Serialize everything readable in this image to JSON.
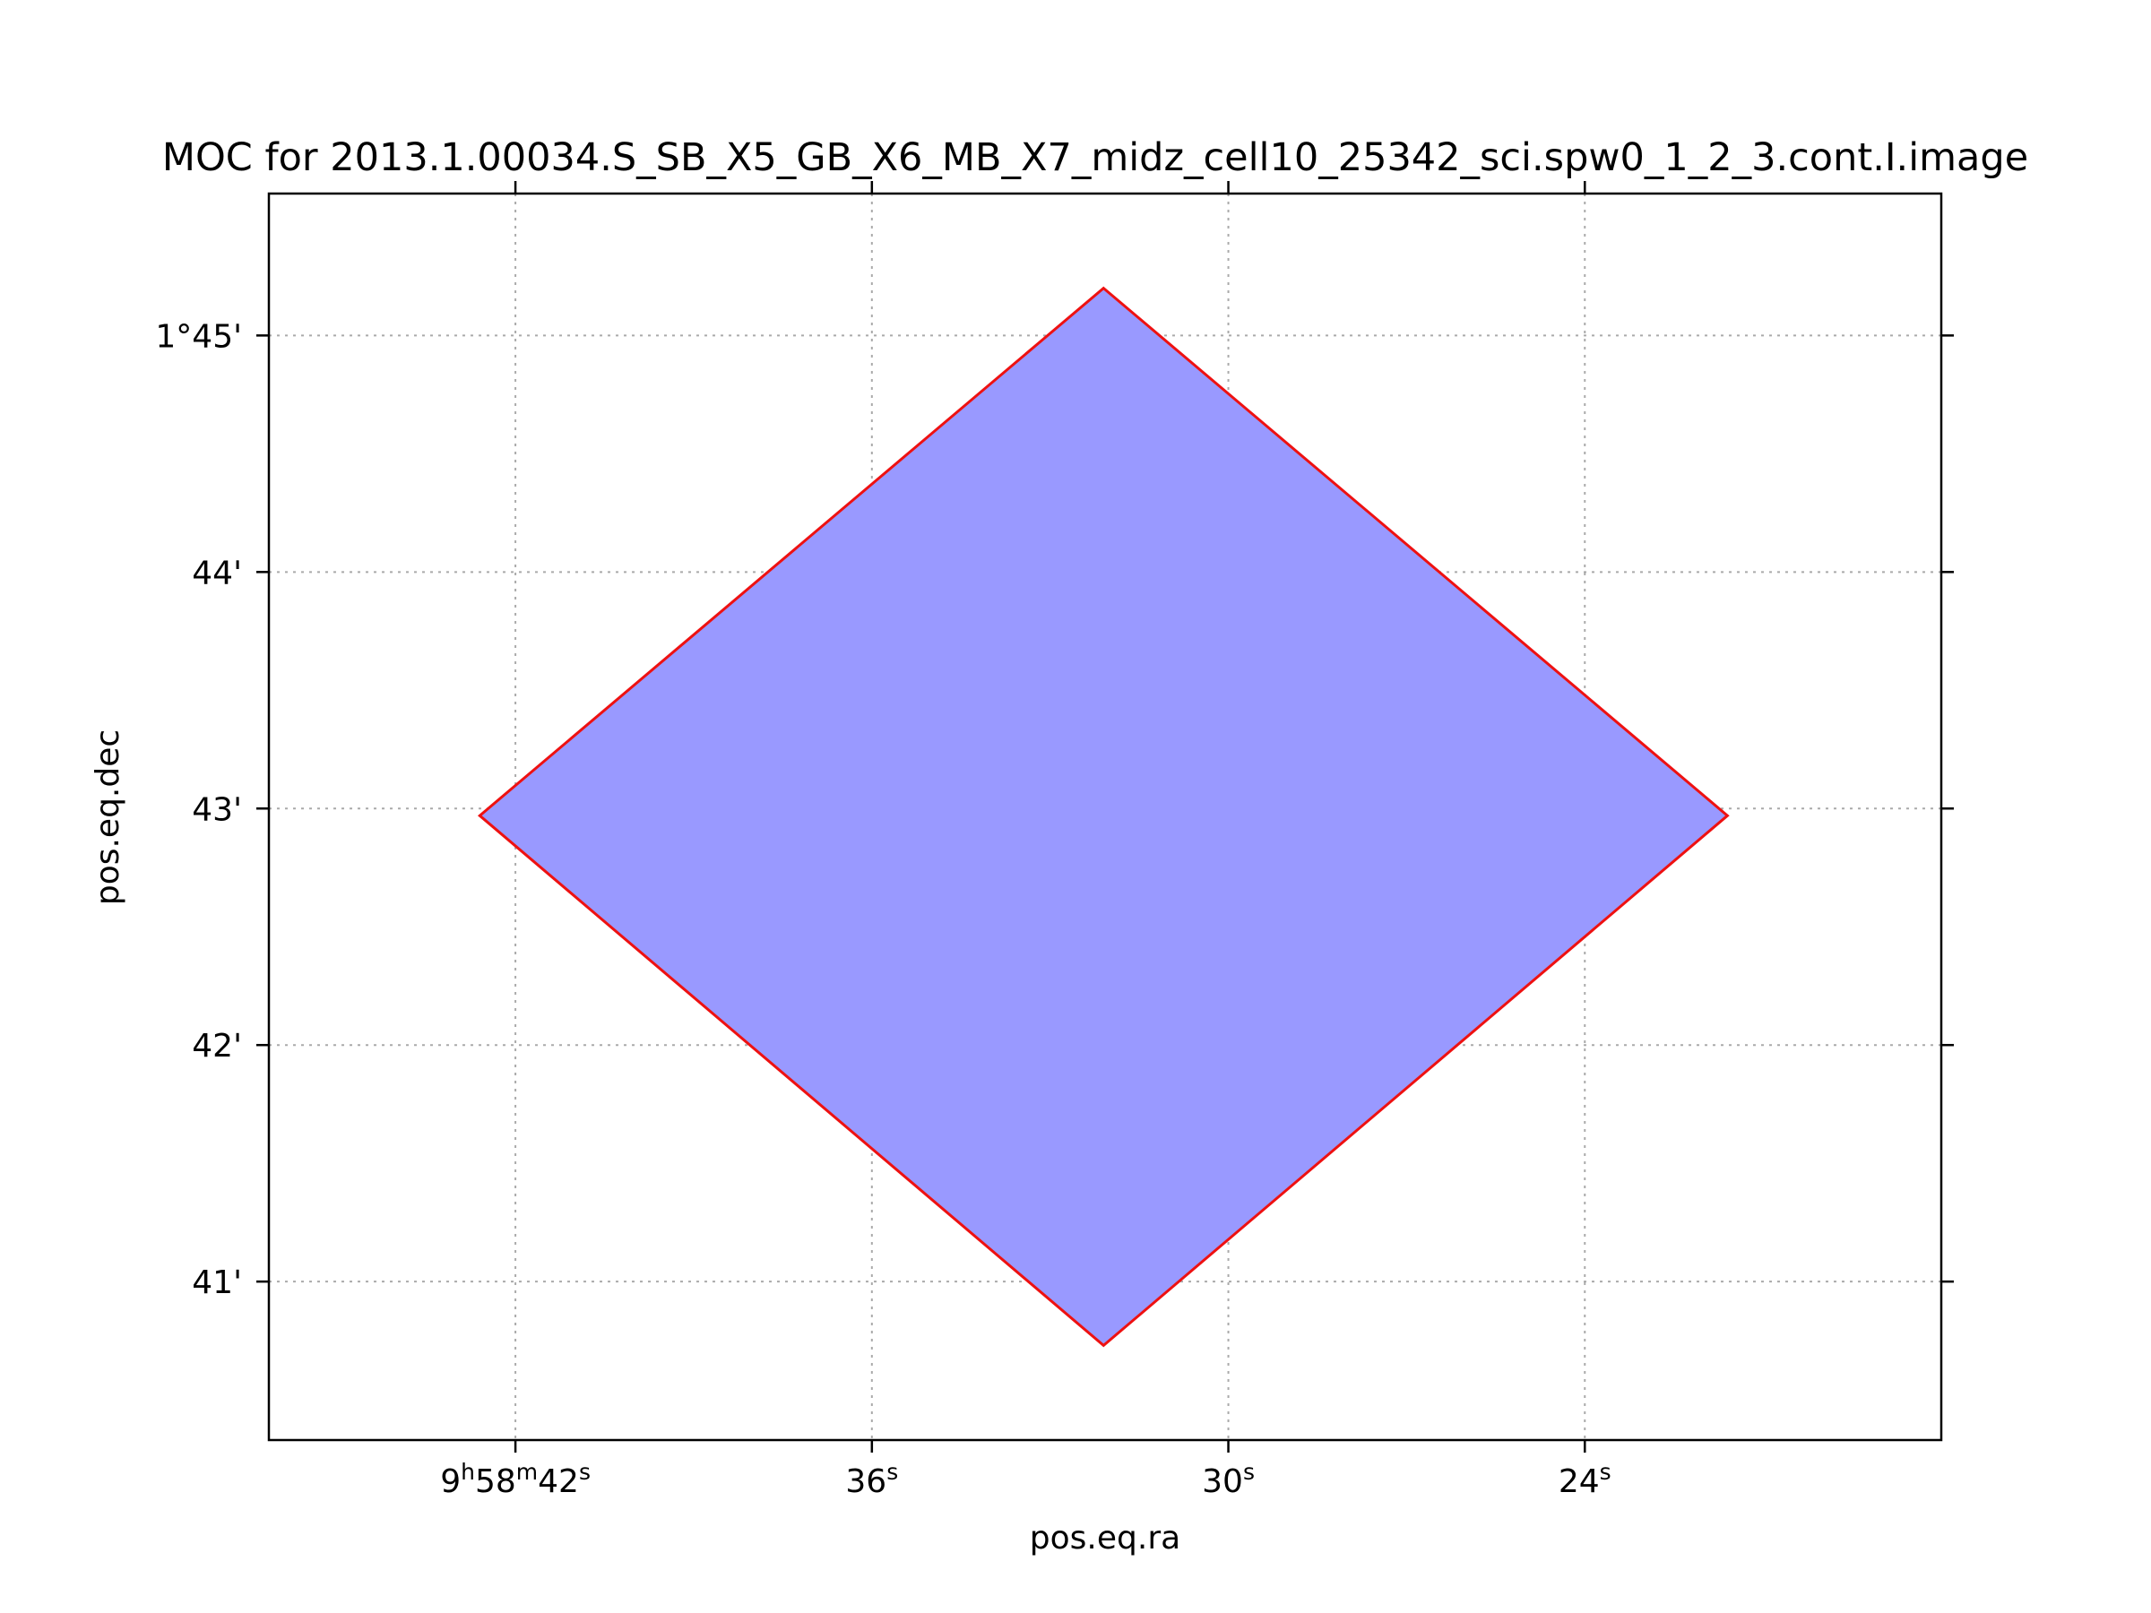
{
  "chart_data": {
    "type": "area",
    "title": "MOC for 2013.1.00034.S_SB_X5_GB_X6_MB_X7_midz_cell10_25342_sci.spw0_1_2_3.cont.I.image",
    "xlabel": "pos.eq.ra",
    "ylabel": "pos.eq.dec",
    "x_unit": "seconds of RA past 9h58m",
    "y_unit": "arcminutes of Dec past 1°",
    "xlim": [
      46.15,
      18.0
    ],
    "ylim": [
      40.33,
      45.6
    ],
    "grid": true,
    "x_ticks": [
      {
        "value": 42,
        "parts": [
          {
            "t": "9"
          },
          {
            "t": "h",
            "sup": true
          },
          {
            "t": "58"
          },
          {
            "t": "m",
            "sup": true
          },
          {
            "t": "42"
          },
          {
            "t": "s",
            "sup": true
          }
        ]
      },
      {
        "value": 36,
        "parts": [
          {
            "t": "36"
          },
          {
            "t": "s",
            "sup": true
          }
        ]
      },
      {
        "value": 30,
        "parts": [
          {
            "t": "30"
          },
          {
            "t": "s",
            "sup": true
          }
        ]
      },
      {
        "value": 24,
        "parts": [
          {
            "t": "24"
          },
          {
            "t": "s",
            "sup": true
          }
        ]
      }
    ],
    "y_ticks": [
      {
        "value": 45,
        "label": "1°45'"
      },
      {
        "value": 44,
        "label": "44'"
      },
      {
        "value": 43,
        "label": "43'"
      },
      {
        "value": 42,
        "label": "42'"
      },
      {
        "value": 41,
        "label": "41'"
      }
    ],
    "region": {
      "fill_color": "#9999ff",
      "edge_color": "#ee1111",
      "points": [
        {
          "x": 32.1,
          "y": 45.2
        },
        {
          "x": 21.6,
          "y": 42.97
        },
        {
          "x": 32.1,
          "y": 40.73
        },
        {
          "x": 42.6,
          "y": 42.97
        }
      ]
    }
  }
}
